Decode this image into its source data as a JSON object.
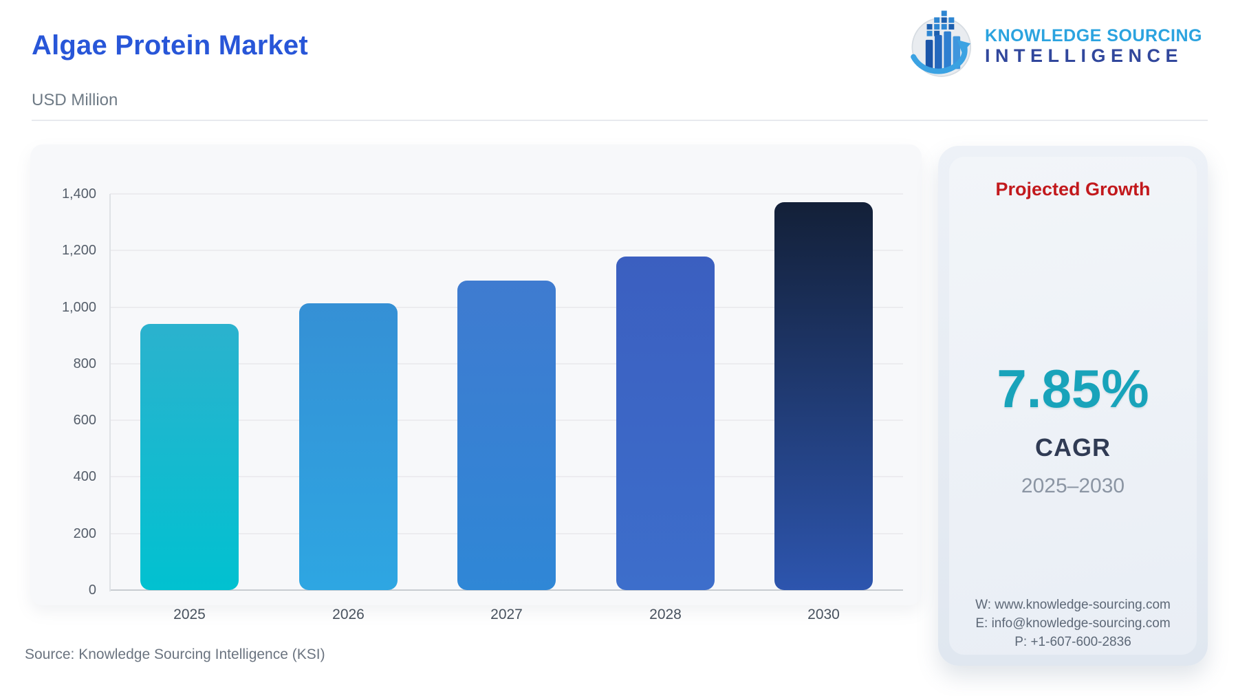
{
  "header": {
    "title": "Algae Protein Market",
    "subtitle": "USD Million",
    "logo": {
      "line1": "KNOWLEDGE SOURCING",
      "line2": "INTELLIGENCE",
      "icon": "bar-chart-globe-arrow-icon"
    }
  },
  "chart_data": {
    "type": "bar",
    "title": "Algae Protein Market",
    "ylabel": "USD Million",
    "categories": [
      "2025",
      "2026",
      "2027",
      "2028",
      "2030"
    ],
    "values": [
      940,
      1014,
      1094,
      1180,
      1371
    ],
    "ylim": [
      0,
      1400
    ],
    "yticks": [
      0,
      200,
      400,
      600,
      800,
      1000,
      1200,
      1400
    ],
    "ytick_labels": [
      "0",
      "200",
      "400",
      "600",
      "800",
      "1,000",
      "1,200",
      "1,400"
    ],
    "grid": true,
    "legend": false,
    "bar_gradients": [
      [
        "#2bb2ce",
        "#01c1d0"
      ],
      [
        "#3590d5",
        "#2ea6e2"
      ],
      [
        "#3f7bd0",
        "#2f87d6"
      ],
      [
        "#3b5fc0",
        "#3d6ecb"
      ],
      [
        "#132038",
        "#2d55ae"
      ]
    ]
  },
  "growth_panel": {
    "title": "Projected Growth",
    "value": "7.85%",
    "label": "CAGR",
    "period": "2025–2030",
    "contacts": {
      "website": "W: www.knowledge-sourcing.com",
      "email": "E: info@knowledge-sourcing.com",
      "phone": "P: +1-607-600-2836"
    },
    "accent_red": "#c2191d",
    "accent_teal": "#18a3ba"
  },
  "footer": {
    "source": "Source: Knowledge Sourcing Intelligence (KSI)"
  }
}
